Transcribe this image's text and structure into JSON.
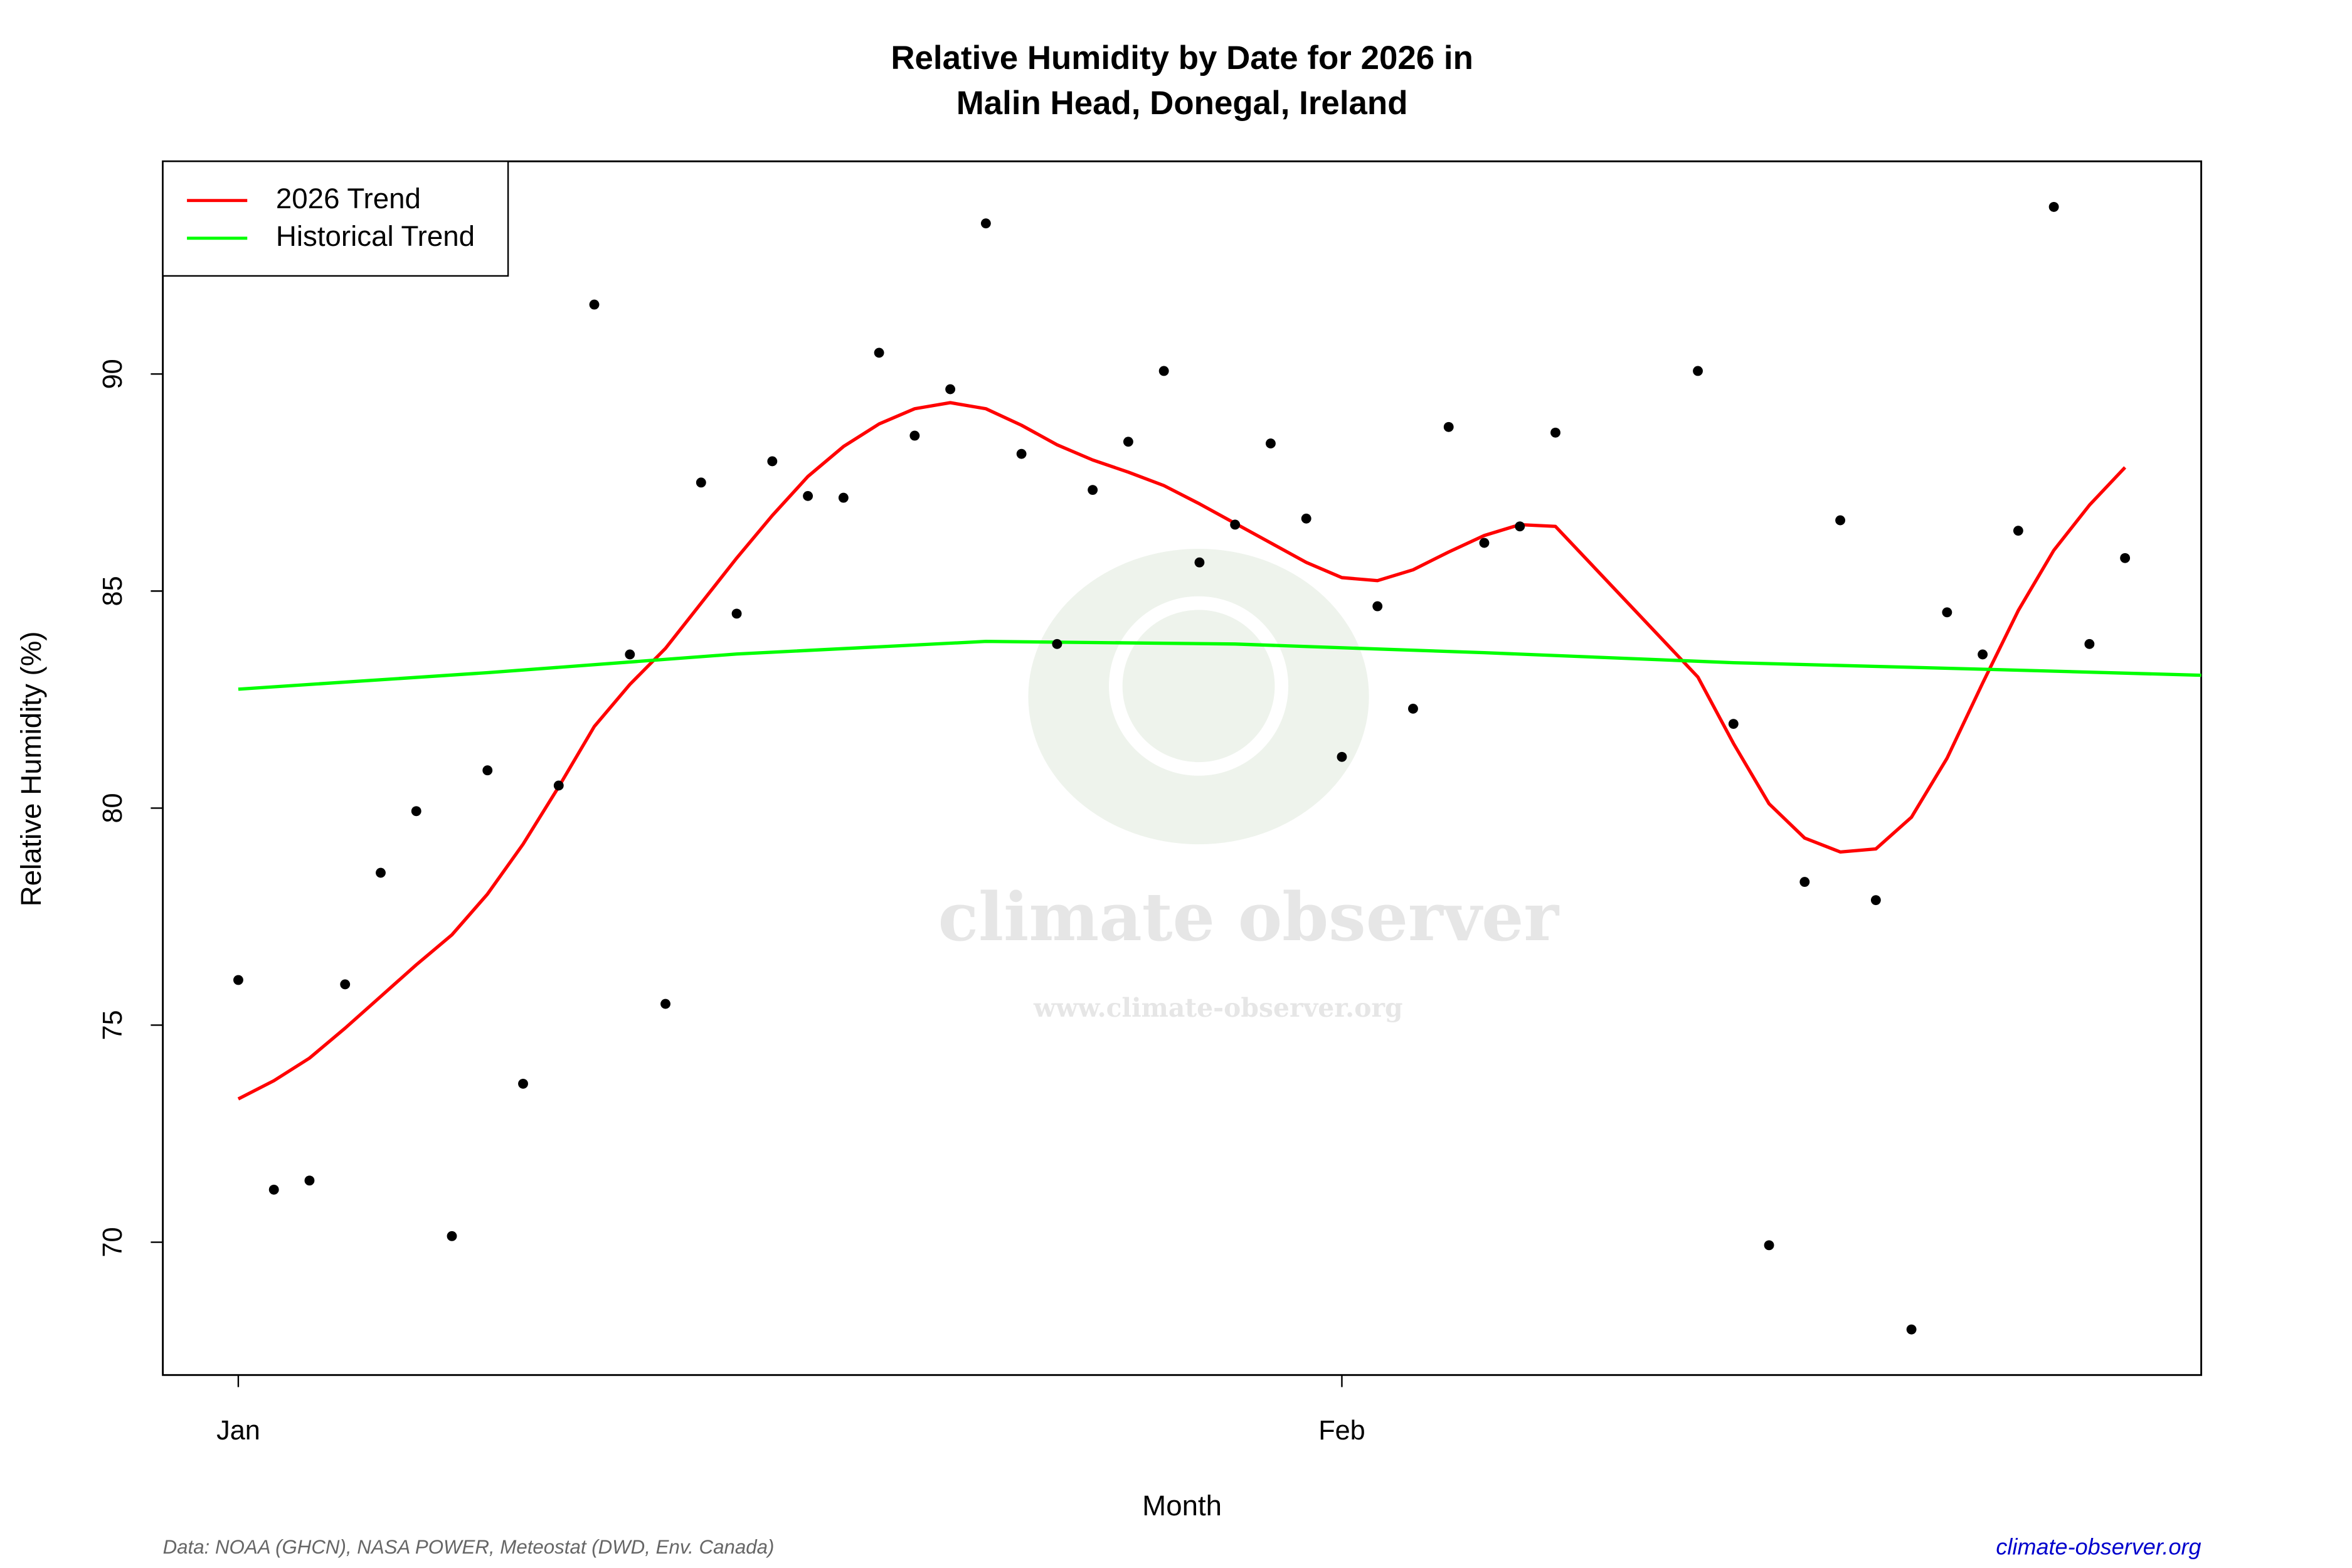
{
  "chart_data": {
    "type": "line",
    "title": [
      "Relative Humidity by Date for 2026 in",
      "Malin Head, Donegal, Ireland"
    ],
    "x_label": "Month",
    "y_label": "Relative Humidity (%)",
    "xlim": [
      -1.12,
      56.14
    ],
    "ylim": [
      66.94,
      94.9
    ],
    "xticks": [
      {
        "value": 1,
        "label": "Jan"
      },
      {
        "value": 32,
        "label": "Feb"
      }
    ],
    "yticks": [
      70,
      75,
      80,
      85,
      90
    ],
    "legend": "top-left",
    "points": {
      "color": "#000000",
      "x": [
        1,
        2,
        3,
        4,
        5,
        6,
        7,
        8,
        9,
        10,
        11,
        12,
        13,
        14,
        15,
        16,
        17,
        18,
        19,
        20,
        21,
        22,
        23,
        24,
        25,
        26,
        27,
        28,
        29,
        30,
        31,
        32,
        33,
        34,
        35,
        36,
        37,
        38,
        42,
        43,
        44,
        45,
        46,
        47,
        48,
        49,
        50,
        51,
        52,
        53,
        54
      ],
      "values": [
        76.04,
        71.21,
        71.42,
        75.94,
        78.51,
        79.93,
        70.14,
        80.87,
        73.65,
        80.52,
        91.6,
        83.54,
        75.49,
        87.5,
        84.48,
        87.99,
        87.19,
        87.15,
        90.49,
        88.58,
        89.65,
        93.47,
        88.16,
        83.78,
        87.33,
        88.44,
        90.07,
        85.66,
        86.53,
        88.4,
        86.67,
        81.18,
        84.65,
        82.29,
        88.78,
        86.11,
        86.49,
        88.65,
        90.07,
        81.94,
        69.93,
        78.3,
        86.63,
        77.88,
        67.99,
        84.51,
        83.54,
        86.39,
        93.85,
        83.78,
        85.76
      ]
    },
    "series": [
      {
        "name": "2026 Trend",
        "color": "#ff0000",
        "x": [
          1,
          2,
          3,
          4,
          5,
          6,
          7,
          8,
          9,
          10,
          11,
          12,
          13,
          14,
          15,
          16,
          17,
          18,
          19,
          20,
          21,
          22,
          23,
          24,
          25,
          26,
          27,
          28,
          29,
          30,
          31,
          32,
          33,
          34,
          35,
          36,
          37,
          38,
          42,
          43,
          44,
          45,
          46,
          47,
          48,
          49,
          50,
          51,
          52,
          53,
          54
        ],
        "values": [
          73.3,
          73.72,
          74.24,
          74.93,
          75.66,
          76.39,
          77.08,
          78.02,
          79.17,
          80.49,
          81.88,
          82.85,
          83.68,
          84.72,
          85.76,
          86.74,
          87.64,
          88.33,
          88.85,
          89.2,
          89.34,
          89.2,
          88.82,
          88.37,
          88.02,
          87.74,
          87.43,
          87.01,
          86.56,
          86.11,
          85.66,
          85.31,
          85.24,
          85.49,
          85.9,
          86.28,
          86.53,
          86.49,
          83.02,
          81.49,
          80.1,
          79.31,
          78.99,
          79.06,
          79.79,
          81.15,
          82.88,
          84.55,
          85.94,
          86.98,
          87.85
        ]
      },
      {
        "name": "Historical Trend",
        "color": "#00ff00",
        "x": [
          1,
          8,
          15,
          22,
          29,
          36,
          43,
          50,
          56.14
        ],
        "values": [
          82.74,
          83.12,
          83.55,
          83.84,
          83.78,
          83.58,
          83.35,
          83.2,
          83.06
        ]
      }
    ],
    "watermark_title": "climate observer",
    "watermark_url": "www.climate-observer.org",
    "source": "Data: NOAA (GHCN), NASA POWER, Meteostat (DWD, Env. Canada)",
    "credit": "climate-observer.org"
  }
}
